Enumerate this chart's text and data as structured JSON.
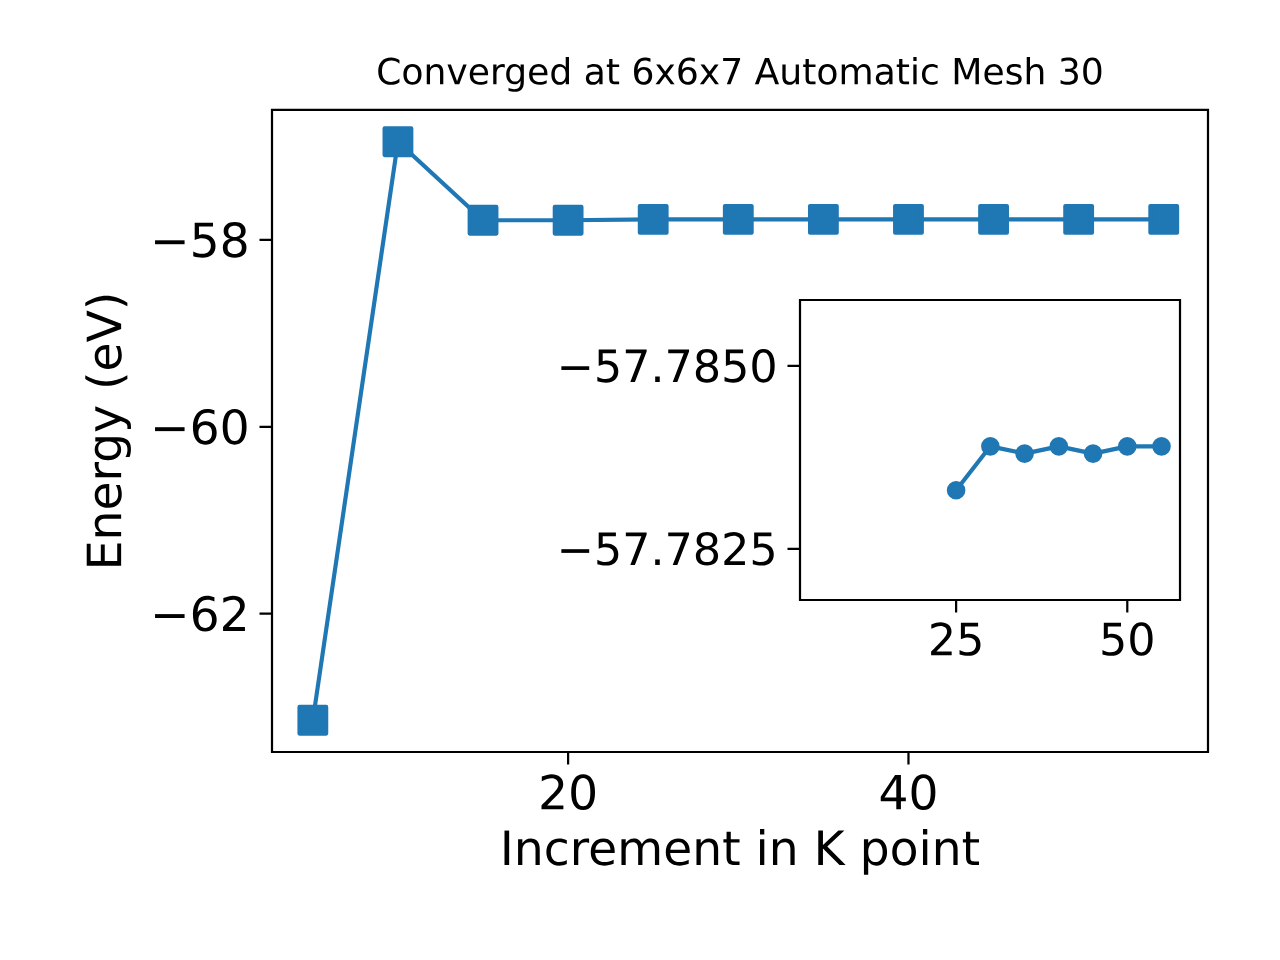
{
  "chart_data": [
    {
      "type": "line",
      "title": "Converged at 6x6x7 Automatic Mesh 30",
      "xlabel": "Increment in K point",
      "ylabel": "Energy (eV)",
      "x": [
        5,
        10,
        15,
        20,
        25,
        30,
        35,
        40,
        45,
        50,
        55
      ],
      "series": [
        {
          "color": "#1f77b4",
          "values": [
            -63.14,
            -56.95,
            -57.79,
            -57.79,
            -57.78,
            -57.78,
            -57.78,
            -57.78,
            -57.78,
            -57.78,
            -57.78
          ]
        }
      ],
      "xlim": [
        2.6,
        57.6
      ],
      "ylim": [
        -63.48,
        -56.61
      ],
      "xticks": [
        20,
        40
      ],
      "yticks": [
        {
          "value": -62,
          "label": "−62"
        },
        {
          "value": -60,
          "label": "−60"
        },
        {
          "value": -58,
          "label": "−58"
        }
      ],
      "marker": "square",
      "grid": false
    },
    {
      "type": "line",
      "x": [
        25,
        30,
        35,
        40,
        45,
        50,
        55
      ],
      "series": [
        {
          "color": "#1f77b4",
          "values": [
            -57.7833,
            -57.7839,
            -57.7838,
            -57.7839,
            -57.7838,
            -57.7839,
            -57.7839
          ]
        }
      ],
      "xlim": [
        2.2,
        57.7
      ],
      "ylim": [
        -57.7818,
        -57.7859
      ],
      "xticks": [
        25,
        50
      ],
      "yticks": [
        {
          "value": -57.785,
          "label": "−57.7850"
        },
        {
          "value": -57.7825,
          "label": "−57.7825"
        }
      ],
      "marker": "circle",
      "grid": false
    }
  ]
}
